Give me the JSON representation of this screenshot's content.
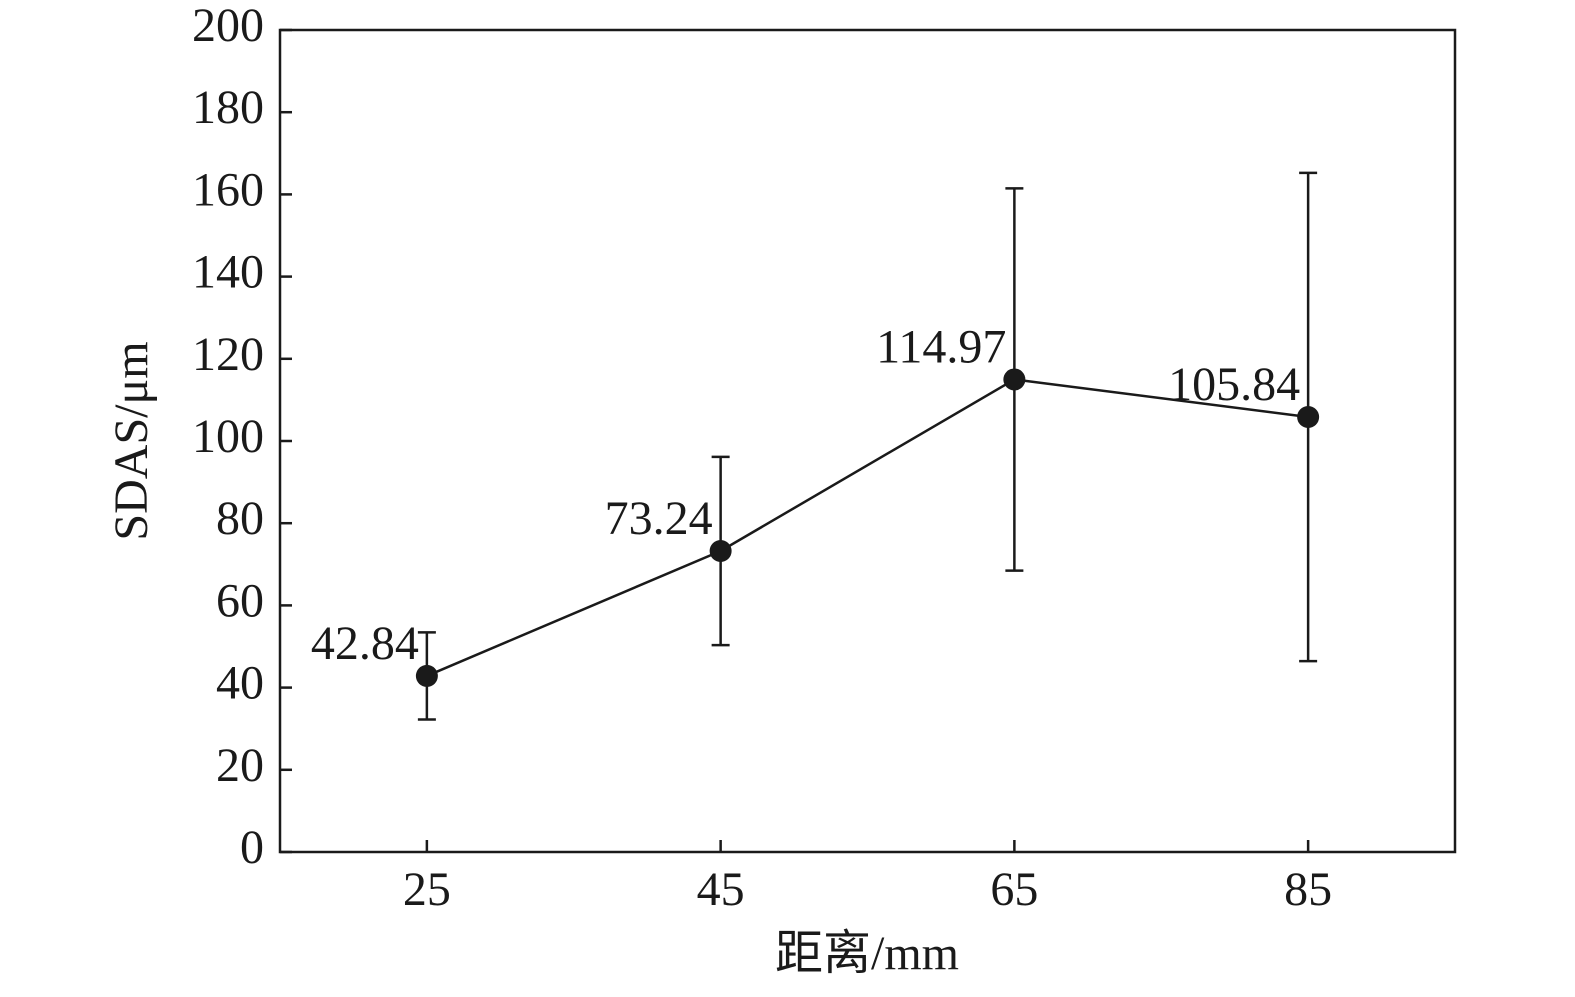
{
  "chart_data": {
    "type": "line",
    "x": [
      25,
      45,
      65,
      85
    ],
    "values": [
      42.84,
      73.24,
      114.97,
      105.84
    ],
    "errors": [
      10.6,
      22.9,
      46.5,
      59.4
    ],
    "color": "#1a1a1a",
    "xlabel": "距离/mm",
    "ylabel": "SDAS/μm",
    "xlim": [
      15,
      95
    ],
    "xticks": [
      25,
      45,
      65,
      85
    ],
    "ylim": [
      0,
      200
    ],
    "yticks": [
      0,
      20,
      40,
      60,
      80,
      100,
      120,
      140,
      160,
      180,
      200
    ],
    "grid": false
  }
}
